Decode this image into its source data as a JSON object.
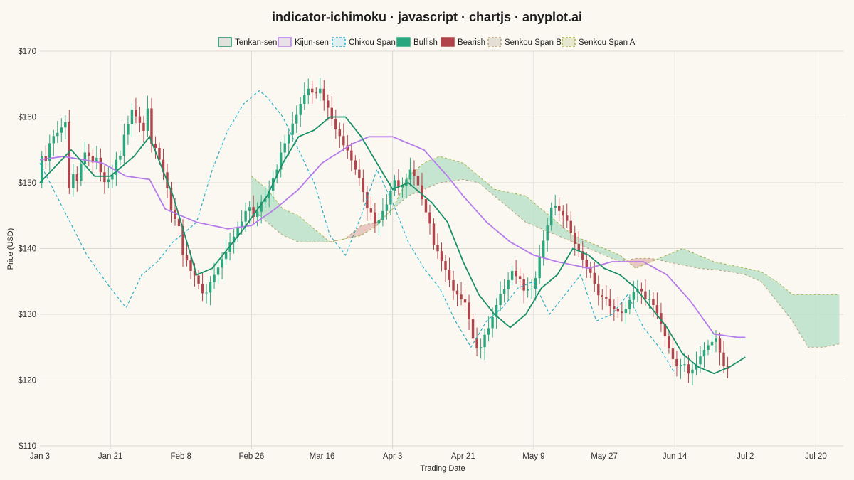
{
  "chart_data": {
    "type": "candlestick-ichimoku",
    "title": "indicator-ichimoku · javascript · chartjs · anyplot.ai",
    "xlabel": "Trading Date",
    "ylabel": "Price (USD)",
    "ylim": [
      110,
      170
    ],
    "yticks": [
      "$110",
      "$120",
      "$130",
      "$140",
      "$150",
      "$160",
      "$170"
    ],
    "y_tick_values": [
      110,
      120,
      130,
      140,
      150,
      160,
      170
    ],
    "x_tick_labels": [
      "Jan 3",
      "Jan 21",
      "Feb 8",
      "Feb 26",
      "Mar 16",
      "Apr 3",
      "Apr 21",
      "May 9",
      "May 27",
      "Jun 14",
      "Jul 2",
      "Jul 20"
    ],
    "x_tick_index": [
      0,
      18,
      36,
      54,
      72,
      90,
      108,
      126,
      144,
      162,
      180,
      198
    ],
    "x_range": [
      0,
      205
    ],
    "grid": true,
    "legend_position": "top",
    "legend": [
      "Tenkan-sen",
      "Kijun-sen",
      "Chikou Span",
      "Bullish",
      "Bearish",
      "Senkou Span B",
      "Senkou Span A"
    ],
    "colors": {
      "tenkan": "#1A8F68",
      "kijun": "#B57BEA",
      "chikou": "#2AB2C9",
      "bullish": "#2AA77F",
      "bearish": "#B0444A",
      "span_b": "#B7A27A",
      "span_a": "#A5B13F",
      "cloud_bull": "#BFE2CC",
      "cloud_bear": "#E6C2BB"
    },
    "candle_count": 180,
    "candle_start_price": 150,
    "candle_closes": [
      154,
      153.3,
      156,
      157.1,
      157.6,
      158.4,
      159.2,
      149.2,
      151.3,
      150.3,
      152.9,
      154.6,
      154.1,
      153.1,
      153.8,
      151.6,
      150.1,
      150.5,
      151.2,
      153.5,
      154.1,
      157.3,
      158.9,
      161.1,
      160.1,
      159.1,
      157.9,
      161.3,
      155.9,
      155.3,
      153.5,
      151.6,
      149.2,
      145.9,
      144.5,
      143.4,
      139,
      138.2,
      136.6,
      135.9,
      134.6,
      133.2,
      133.3,
      134.9,
      136,
      137.1,
      138.4,
      139.5,
      140.9,
      141.8,
      143.3,
      144.1,
      145.7,
      146.3,
      144.8,
      145.6,
      147.1,
      147.6,
      148.8,
      150.7,
      152,
      154.6,
      156,
      157.3,
      159,
      160.3,
      162,
      163.3,
      164.3,
      163.7,
      163.6,
      164.3,
      162.5,
      161.4,
      159.7,
      158.1,
      157.1,
      155.7,
      154.9,
      153.4,
      152,
      150.7,
      148.6,
      146.1,
      145.5,
      143.8,
      144.3,
      145.7,
      146.7,
      148.8,
      150.4,
      149.3,
      149.5,
      150.5,
      152,
      151,
      149.6,
      147.5,
      145.5,
      143.8,
      140.6,
      139.6,
      138.1,
      136.8,
      135.2,
      133.6,
      133,
      132.3,
      131.8,
      129.3,
      126.3,
      124.8,
      125,
      126.9,
      127.9,
      129.6,
      131.4,
      133.1,
      133.8,
      135.2,
      136.6,
      135.8,
      135.3,
      133.6,
      133.8,
      133.9,
      135.5,
      138.7,
      141.2,
      143.5,
      146.2,
      146.5,
      145.7,
      145,
      144.2,
      142.4,
      140.7,
      139.6,
      138.3,
      137.2,
      136.3,
      134.6,
      132.9,
      132.6,
      132.4,
      131.2,
      130.8,
      130.4,
      130.2,
      130.8,
      132.2,
      133.4,
      133.9,
      133.5,
      132.3,
      132.3,
      131.4,
      130.2,
      128.6,
      126.7,
      124.8,
      123.2,
      122.1,
      122.3,
      122.4,
      121,
      121.6,
      122.4,
      123.6,
      124.6,
      125.3,
      125.8,
      126.3,
      124.2,
      122.1,
      121.7
    ],
    "tenkan": [
      [
        0,
        150
      ],
      [
        8,
        155
      ],
      [
        14,
        151
      ],
      [
        18,
        151
      ],
      [
        24,
        154
      ],
      [
        28,
        157
      ],
      [
        34,
        148
      ],
      [
        38,
        140
      ],
      [
        40,
        136
      ],
      [
        44,
        137
      ],
      [
        52,
        143
      ],
      [
        58,
        148
      ],
      [
        62,
        153
      ],
      [
        66,
        157
      ],
      [
        70,
        158
      ],
      [
        74,
        160
      ],
      [
        78,
        160
      ],
      [
        82,
        157
      ],
      [
        86,
        153
      ],
      [
        90,
        149
      ],
      [
        94,
        150
      ],
      [
        100,
        147
      ],
      [
        104,
        144
      ],
      [
        108,
        138
      ],
      [
        112,
        133
      ],
      [
        116,
        130
      ],
      [
        120,
        128
      ],
      [
        124,
        130
      ],
      [
        128,
        134
      ],
      [
        132,
        136
      ],
      [
        136,
        140
      ],
      [
        140,
        139
      ],
      [
        144,
        137
      ],
      [
        148,
        136
      ],
      [
        152,
        134
      ],
      [
        156,
        131
      ],
      [
        160,
        128
      ],
      [
        164,
        124
      ],
      [
        168,
        122
      ],
      [
        172,
        121
      ],
      [
        176,
        122
      ],
      [
        180,
        123.5
      ]
    ],
    "kijun": [
      [
        0,
        153.5
      ],
      [
        6,
        154
      ],
      [
        16,
        153
      ],
      [
        22,
        151
      ],
      [
        28,
        150.5
      ],
      [
        32,
        146
      ],
      [
        40,
        144
      ],
      [
        48,
        143
      ],
      [
        54,
        143.5
      ],
      [
        60,
        146
      ],
      [
        66,
        149
      ],
      [
        72,
        153
      ],
      [
        80,
        156
      ],
      [
        84,
        157
      ],
      [
        90,
        157
      ],
      [
        98,
        155
      ],
      [
        104,
        151
      ],
      [
        108,
        148
      ],
      [
        114,
        144
      ],
      [
        120,
        141
      ],
      [
        126,
        139
      ],
      [
        132,
        138
      ],
      [
        140,
        137
      ],
      [
        146,
        138
      ],
      [
        154,
        138
      ],
      [
        160,
        136
      ],
      [
        166,
        132
      ],
      [
        172,
        127
      ],
      [
        178,
        126.5
      ],
      [
        180,
        126.5
      ]
    ],
    "chikou": [
      [
        0,
        153
      ],
      [
        6,
        146
      ],
      [
        12,
        139
      ],
      [
        18,
        134
      ],
      [
        22,
        131
      ],
      [
        26,
        136
      ],
      [
        30,
        138
      ],
      [
        34,
        141
      ],
      [
        40,
        144
      ],
      [
        44,
        152
      ],
      [
        48,
        158
      ],
      [
        52,
        162
      ],
      [
        56,
        164
      ],
      [
        58,
        163
      ],
      [
        62,
        160
      ],
      [
        66,
        155
      ],
      [
        70,
        150
      ],
      [
        74,
        142
      ],
      [
        78,
        139
      ],
      [
        82,
        145
      ],
      [
        86,
        152
      ],
      [
        90,
        147
      ],
      [
        94,
        141
      ],
      [
        98,
        137
      ],
      [
        102,
        134
      ],
      [
        106,
        129
      ],
      [
        110,
        125
      ],
      [
        114,
        129
      ],
      [
        118,
        131
      ],
      [
        122,
        134
      ],
      [
        126,
        135
      ],
      [
        130,
        130
      ],
      [
        134,
        133
      ],
      [
        138,
        136
      ],
      [
        142,
        129
      ],
      [
        146,
        130
      ],
      [
        150,
        133
      ],
      [
        154,
        128
      ],
      [
        158,
        125
      ],
      [
        162,
        121
      ]
    ],
    "span_a": [
      [
        54,
        151
      ],
      [
        58,
        149
      ],
      [
        62,
        146
      ],
      [
        66,
        145
      ],
      [
        70,
        143
      ],
      [
        74,
        141
      ],
      [
        78,
        141.5
      ],
      [
        82,
        142
      ],
      [
        86,
        143.5
      ],
      [
        90,
        146
      ],
      [
        94,
        151
      ],
      [
        98,
        153
      ],
      [
        102,
        154
      ],
      [
        108,
        153
      ],
      [
        112,
        151
      ],
      [
        116,
        149
      ],
      [
        120,
        148.5
      ],
      [
        124,
        148
      ],
      [
        128,
        146
      ],
      [
        132,
        144
      ],
      [
        136,
        142
      ],
      [
        140,
        141
      ],
      [
        144,
        140
      ],
      [
        148,
        139
      ],
      [
        152,
        137
      ],
      [
        156,
        138
      ],
      [
        160,
        139
      ],
      [
        164,
        140
      ],
      [
        168,
        139
      ],
      [
        172,
        138
      ],
      [
        176,
        137.5
      ],
      [
        180,
        137
      ],
      [
        184,
        136.5
      ],
      [
        188,
        135
      ],
      [
        192,
        133
      ],
      [
        196,
        133
      ],
      [
        200,
        133
      ],
      [
        204,
        133
      ]
    ],
    "span_b": [
      [
        54,
        146
      ],
      [
        58,
        144
      ],
      [
        62,
        142
      ],
      [
        66,
        141
      ],
      [
        70,
        141
      ],
      [
        74,
        141
      ],
      [
        78,
        141.5
      ],
      [
        82,
        143.5
      ],
      [
        86,
        144
      ],
      [
        90,
        146
      ],
      [
        94,
        148
      ],
      [
        98,
        149
      ],
      [
        102,
        150
      ],
      [
        108,
        150.5
      ],
      [
        112,
        150
      ],
      [
        116,
        148
      ],
      [
        120,
        146
      ],
      [
        124,
        144
      ],
      [
        128,
        143
      ],
      [
        132,
        142
      ],
      [
        136,
        141
      ],
      [
        140,
        140
      ],
      [
        144,
        139
      ],
      [
        148,
        138
      ],
      [
        152,
        138.5
      ],
      [
        156,
        138.5
      ],
      [
        160,
        138
      ],
      [
        164,
        137.5
      ],
      [
        168,
        137
      ],
      [
        172,
        136.8
      ],
      [
        176,
        136.5
      ],
      [
        180,
        136
      ],
      [
        184,
        135
      ],
      [
        188,
        132
      ],
      [
        192,
        129
      ],
      [
        196,
        125
      ],
      [
        200,
        125
      ],
      [
        204,
        125.5
      ]
    ]
  }
}
